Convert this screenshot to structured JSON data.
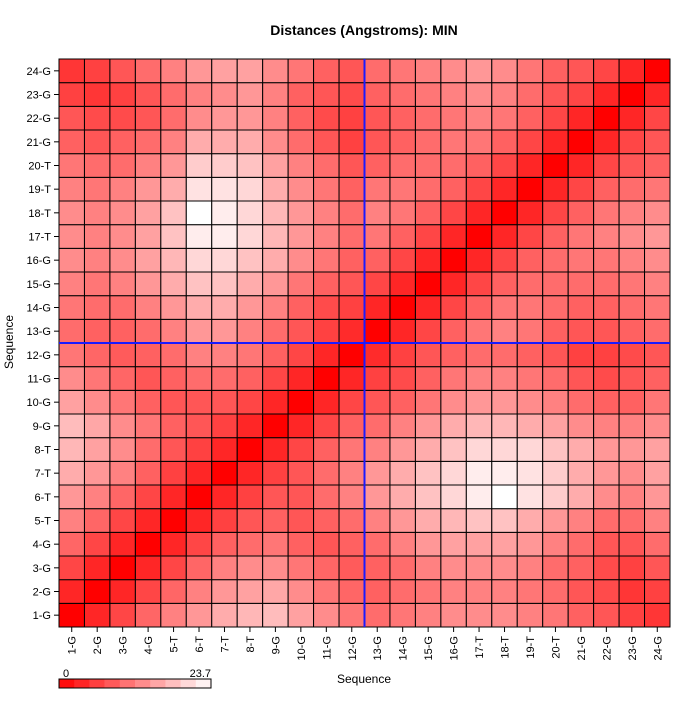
{
  "chart_data": {
    "type": "heatmap",
    "title": "Distances (Angstroms):  MIN",
    "xlabel": "Sequence",
    "ylabel": "Sequence",
    "categories": [
      "1-G",
      "2-G",
      "3-G",
      "4-G",
      "5-T",
      "6-T",
      "7-T",
      "8-T",
      "9-G",
      "10-G",
      "11-G",
      "12-G",
      "13-G",
      "14-G",
      "15-G",
      "16-G",
      "17-T",
      "18-T",
      "19-T",
      "20-T",
      "21-G",
      "22-G",
      "23-G",
      "24-G"
    ],
    "legend": {
      "min_label": "0",
      "max_label": "23.7"
    },
    "value_range": [
      0,
      23.7
    ],
    "divider_after_index": 11,
    "divider_color": "#1a1aff",
    "cell_border_color": "#000000",
    "low_color": "#ff0000",
    "high_color": "#ffffff",
    "grid": true,
    "values": [
      [
        0,
        3.5,
        6.5,
        9.5,
        12,
        14,
        16,
        17,
        17.5,
        15,
        13,
        11,
        10,
        11,
        12,
        13,
        13,
        13,
        12,
        11,
        9,
        8,
        6,
        5
      ],
      [
        3.5,
        0,
        3.5,
        6.5,
        9.5,
        12,
        14,
        15,
        15.5,
        13,
        11,
        9.5,
        9,
        10,
        11,
        12,
        12,
        12,
        11,
        10,
        8,
        7,
        5,
        6
      ],
      [
        6.5,
        3.5,
        0,
        3.5,
        6.5,
        9.5,
        12,
        13,
        13,
        11,
        9.5,
        8.5,
        9,
        10,
        12,
        13,
        13,
        13,
        12,
        10,
        9,
        7,
        6,
        8
      ],
      [
        9.5,
        6.5,
        3.5,
        0,
        3.5,
        6.5,
        9,
        10,
        11,
        9,
        8,
        9,
        10,
        12,
        14,
        15,
        15,
        15,
        14,
        12,
        10,
        8,
        8,
        10
      ],
      [
        12,
        9.5,
        6.5,
        3.5,
        0,
        3.5,
        6,
        8,
        9,
        8,
        9,
        10,
        12,
        14,
        16,
        17,
        18,
        18,
        16,
        14,
        12,
        10,
        10,
        12
      ],
      [
        14,
        12,
        9.5,
        6.5,
        3.5,
        0,
        3.5,
        6,
        8,
        8,
        10,
        12,
        14,
        16,
        18,
        20,
        22,
        23.7,
        21,
        19,
        16,
        13,
        12,
        14
      ],
      [
        16,
        14,
        12,
        9,
        6,
        3.5,
        0,
        3.5,
        6,
        8,
        10,
        12,
        14,
        16,
        18,
        20,
        22,
        22,
        21,
        19,
        16,
        14,
        13,
        15
      ],
      [
        17,
        15,
        13,
        10,
        8,
        6,
        3.5,
        0,
        3.5,
        6.5,
        9,
        11,
        12,
        14,
        16,
        18,
        20,
        20,
        20,
        18,
        16,
        14,
        14,
        15
      ],
      [
        17.5,
        15.5,
        13,
        11,
        9,
        8,
        6,
        3.5,
        0,
        3.5,
        6.5,
        9,
        10,
        12,
        14,
        16,
        17,
        17,
        16,
        15,
        13,
        12,
        12,
        13
      ],
      [
        15,
        13,
        11,
        9,
        8,
        8,
        8,
        6.5,
        3.5,
        0,
        3.5,
        6.5,
        8,
        9,
        11,
        13,
        14,
        14,
        13,
        12,
        10,
        9,
        9,
        11
      ],
      [
        13,
        11,
        9.5,
        8,
        9,
        10,
        10,
        9,
        6.5,
        3.5,
        0,
        3.5,
        6,
        7,
        9,
        11,
        12,
        12,
        11,
        10,
        8,
        7,
        8,
        9
      ],
      [
        11,
        9.5,
        8.5,
        9,
        10,
        12,
        12,
        11,
        9,
        6.5,
        3.5,
        0,
        4,
        6,
        8,
        9,
        10,
        10,
        9,
        8,
        6,
        6,
        7,
        8
      ],
      [
        10,
        9,
        9,
        10,
        12,
        14,
        14,
        12,
        10,
        8,
        6,
        4,
        0,
        3.5,
        6.5,
        9,
        11,
        12,
        11,
        9,
        8,
        8,
        9,
        10
      ],
      [
        11,
        10,
        10,
        12,
        14,
        16,
        16,
        14,
        12,
        9,
        7,
        6,
        3.5,
        0,
        3.5,
        6.5,
        9,
        11,
        11,
        10,
        9,
        9,
        10,
        11
      ],
      [
        12,
        11,
        12,
        14,
        16,
        18,
        18,
        16,
        14,
        11,
        9,
        8,
        6.5,
        3.5,
        0,
        3.5,
        6.5,
        9,
        10,
        10,
        10,
        10,
        11,
        12
      ],
      [
        13,
        12,
        13,
        15,
        17,
        20,
        20,
        18,
        16,
        13,
        11,
        9,
        9,
        6.5,
        3.5,
        0,
        3.5,
        6.5,
        9,
        10,
        11,
        11,
        12,
        13
      ],
      [
        13,
        12,
        13,
        15,
        18,
        22,
        22,
        20,
        17,
        14,
        12,
        10,
        11,
        9,
        6.5,
        3.5,
        0,
        3.5,
        6.5,
        9,
        11,
        12,
        13,
        14
      ],
      [
        13,
        12,
        13,
        15,
        18,
        23.7,
        22,
        20,
        17,
        14,
        12,
        10,
        12,
        11,
        9,
        6.5,
        3.5,
        0,
        3.5,
        6.5,
        9,
        11,
        12,
        13
      ],
      [
        12,
        11,
        12,
        14,
        16,
        21,
        21,
        20,
        16,
        13,
        11,
        9,
        11,
        11,
        10,
        9,
        6.5,
        3.5,
        0,
        3.5,
        6.5,
        9,
        10,
        11
      ],
      [
        11,
        10,
        10,
        12,
        14,
        19,
        19,
        18,
        15,
        12,
        10,
        8,
        9,
        10,
        10,
        10,
        9,
        6.5,
        3.5,
        0,
        3.5,
        6.5,
        8,
        9
      ],
      [
        9,
        8,
        9,
        10,
        12,
        16,
        16,
        16,
        13,
        10,
        8,
        6,
        8,
        9,
        10,
        11,
        11,
        9,
        6.5,
        3.5,
        0,
        3.5,
        6.5,
        8
      ],
      [
        8,
        7,
        7,
        8,
        10,
        13,
        14,
        14,
        12,
        9,
        7,
        6,
        8,
        9,
        10,
        11,
        12,
        11,
        9,
        6.5,
        3.5,
        0,
        3.5,
        6.5
      ],
      [
        6,
        5,
        6,
        8,
        10,
        12,
        13,
        14,
        12,
        9,
        8,
        7,
        9,
        10,
        11,
        12,
        13,
        12,
        10,
        8,
        6.5,
        3.5,
        0,
        3.5
      ],
      [
        5,
        6,
        8,
        10,
        12,
        14,
        15,
        15,
        13,
        11,
        9,
        8,
        10,
        11,
        12,
        13,
        14,
        13,
        11,
        9,
        8,
        6.5,
        3.5,
        0
      ]
    ]
  }
}
